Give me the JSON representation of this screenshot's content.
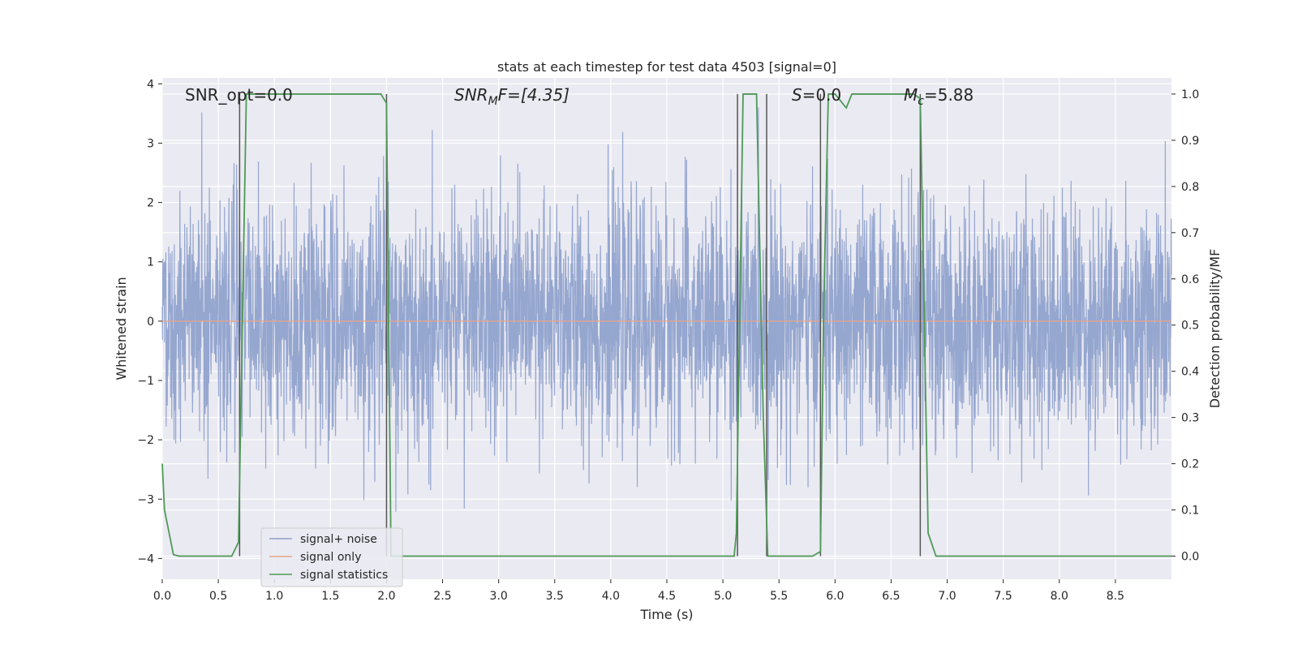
{
  "chart_data": {
    "type": "line",
    "title": "stats at each timestep for test data 4503 [signal=0]",
    "xlabel": "Time (s)",
    "ylabel_left": "Whitened strain",
    "ylabel_right": "Detection probability/MF",
    "xlim": [
      0.0,
      9.0
    ],
    "ylim_left": [
      -4.35,
      4.1
    ],
    "ylim_right": [
      -0.05,
      1.035
    ],
    "grid": true,
    "legend_placement": "lower-left",
    "x_ticks": [
      "0.0",
      "0.5",
      "1.0",
      "1.5",
      "2.0",
      "2.5",
      "3.0",
      "3.5",
      "4.0",
      "4.5",
      "5.0",
      "5.5",
      "6.0",
      "6.5",
      "7.0",
      "7.5",
      "8.0",
      "8.5"
    ],
    "y_left_ticks": [
      "4",
      "3",
      "2",
      "1",
      "0",
      "−1",
      "−2",
      "−3",
      "−4"
    ],
    "y_right_ticks": [
      "1.0",
      "0.9",
      "0.8",
      "0.7",
      "0.6",
      "0.5",
      "0.4",
      "0.3",
      "0.2",
      "0.1",
      "0.0"
    ],
    "annotations": {
      "snr_opt": "SNR_opt=0.0",
      "snr_mf_main": "SNR",
      "snr_mf_sub": "M",
      "snr_mf_rest": "F=[4.35]",
      "s_main": "S",
      "s_rest": "=0.0",
      "mc_main": "M",
      "mc_sub": "c",
      "mc_rest": "=5.88"
    },
    "series": [
      {
        "name": "signal+ noise",
        "color": "#8c9fcb",
        "axis": "left",
        "description_values": {
          "amplitude_std": 1.0,
          "typical_peak": 3.0
        }
      },
      {
        "name": "signal only",
        "color": "#e8a58a",
        "axis": "left",
        "x": [
          0.0,
          9.0
        ],
        "y": [
          0.0,
          0.0
        ]
      },
      {
        "name": "signal statistics",
        "color": "#4e9a57",
        "axis": "right",
        "x": [
          0.0,
          0.02,
          0.1,
          0.15,
          0.62,
          0.68,
          0.7,
          0.75,
          1.95,
          2.0,
          2.04,
          2.1,
          5.1,
          5.12,
          5.18,
          5.3,
          5.36,
          5.4,
          5.8,
          5.87,
          5.9,
          5.94,
          6.0,
          6.1,
          6.15,
          6.3,
          6.7,
          6.76,
          6.83,
          6.9,
          9.0
        ],
        "y": [
          0.2,
          0.1,
          0.003,
          0.0,
          0.0,
          0.03,
          0.3,
          1.0,
          1.0,
          0.98,
          0.0,
          0.0,
          0.0,
          0.05,
          1.0,
          1.0,
          0.3,
          0.0,
          0.0,
          0.01,
          0.55,
          1.0,
          1.0,
          0.97,
          1.0,
          1.0,
          1.0,
          0.99,
          0.05,
          0.0,
          0.0
        ]
      }
    ],
    "vertical_markers_x": [
      0.69,
      2.0,
      5.13,
      5.39,
      5.87,
      6.76
    ]
  }
}
